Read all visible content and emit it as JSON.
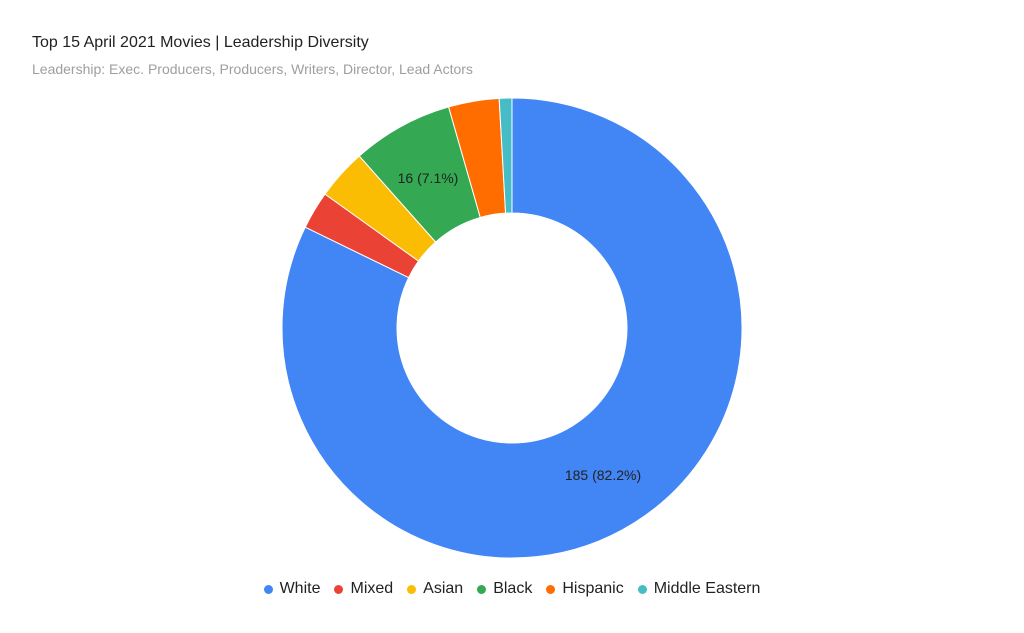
{
  "chart": {
    "title": "Top 15 April 2021 Movies | Leadership Diversity",
    "subtitle": "Leadership: Exec. Producers, Producers, Writers, Director, Lead Actors"
  },
  "chart_data": {
    "type": "pie",
    "subtype": "donut",
    "title": "Top 15 April 2021 Movies | Leadership Diversity",
    "subtitle": "Leadership: Exec. Producers, Producers, Writers, Director, Lead Actors",
    "categories": [
      "White",
      "Mixed",
      "Asian",
      "Black",
      "Hispanic",
      "Middle Eastern"
    ],
    "values": [
      185,
      6,
      8,
      16,
      8,
      2
    ],
    "colors": [
      "#4285f4",
      "#ea4335",
      "#fbbc04",
      "#34a853",
      "#ff6d01",
      "#46bdc6"
    ],
    "data_labels": [
      {
        "category": "White",
        "text": "185 (82.2%)"
      },
      {
        "category": "Black",
        "text": "16 (7.1%)"
      }
    ],
    "legend_position": "bottom",
    "start_angle": "12 o'clock, clockwise",
    "hole_ratio": 0.5
  },
  "legend": {
    "items": [
      {
        "label": "White",
        "color": "#4285f4"
      },
      {
        "label": "Mixed",
        "color": "#ea4335"
      },
      {
        "label": "Asian",
        "color": "#fbbc04"
      },
      {
        "label": "Black",
        "color": "#34a853"
      },
      {
        "label": "Hispanic",
        "color": "#ff6d01"
      },
      {
        "label": "Middle Eastern",
        "color": "#46bdc6"
      }
    ]
  },
  "labels": {
    "white": "185 (82.2%)",
    "black": "16 (7.1%)"
  }
}
